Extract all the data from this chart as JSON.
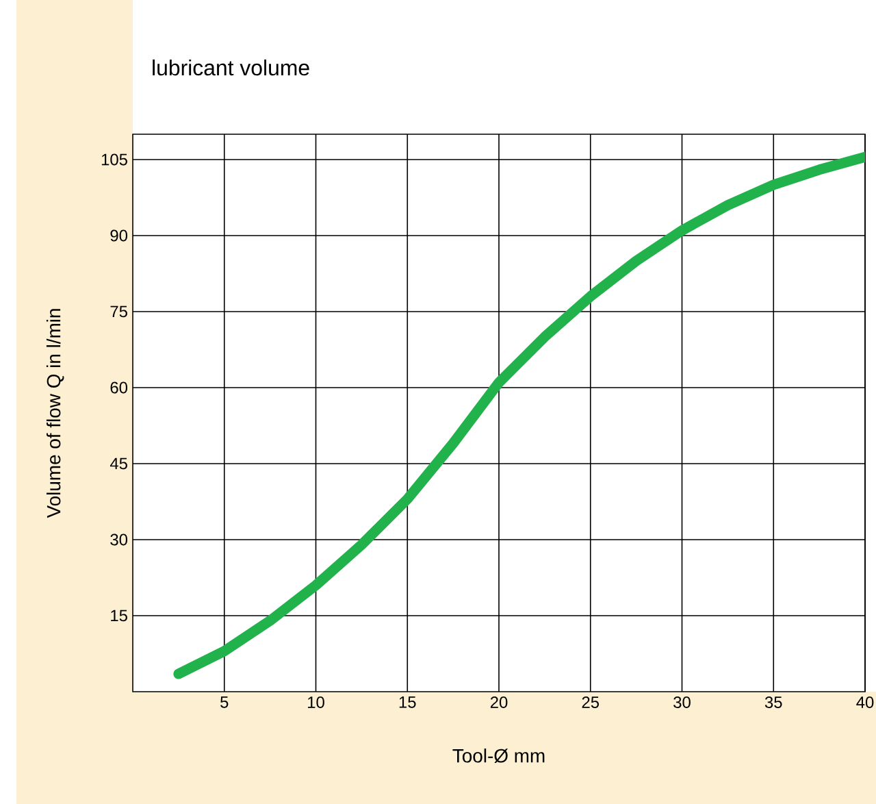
{
  "chart_data": {
    "type": "line",
    "title": "lubricant volume",
    "xlabel": "Tool-Ø mm",
    "ylabel": "Volume of flow Q in l/min",
    "x": [
      2.5,
      5,
      7.5,
      10,
      12.5,
      15,
      17.5,
      20,
      22.5,
      25,
      27.5,
      30,
      32.5,
      35,
      37.5,
      40
    ],
    "series": [
      {
        "color": "#22b24c",
        "values": [
          3.5,
          8,
          14,
          21,
          29,
          38,
          49,
          61,
          70,
          78,
          85,
          91,
          96,
          100,
          103,
          105.5
        ]
      }
    ],
    "xlim": [
      0,
      40
    ],
    "ylim": [
      0,
      110
    ],
    "xticks": [
      5,
      10,
      15,
      20,
      25,
      30,
      35,
      40
    ],
    "yticks": [
      15,
      30,
      45,
      60,
      75,
      90,
      105
    ],
    "grid": true,
    "line_style": "solid",
    "marker": "none"
  }
}
